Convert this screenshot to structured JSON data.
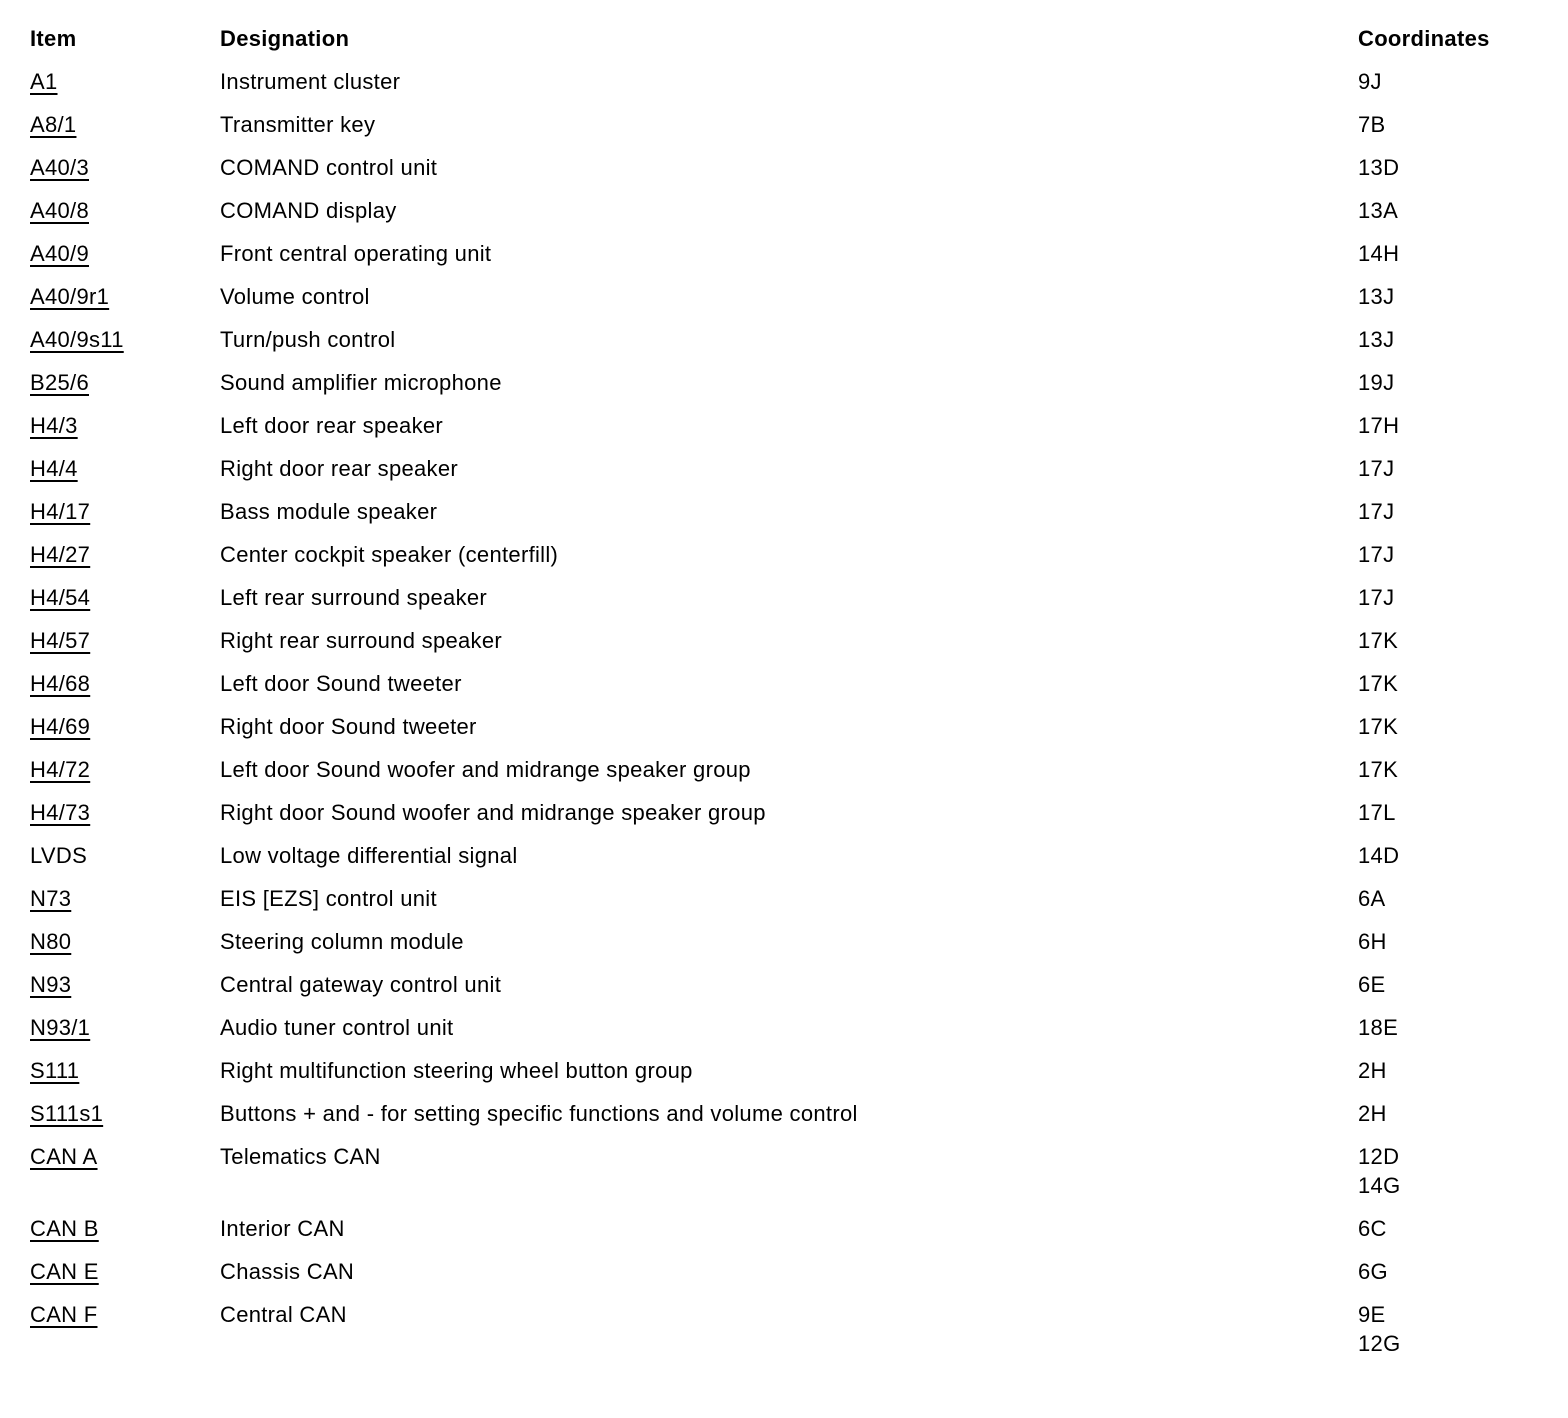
{
  "table": {
    "headers": {
      "item": "Item",
      "designation": "Designation",
      "coordinates": "Coordinates"
    },
    "rows": [
      {
        "item": "A1",
        "designation": "Instrument cluster",
        "coordinates": "9J",
        "link": true
      },
      {
        "item": "A8/1",
        "designation": "Transmitter key",
        "coordinates": "7B",
        "link": true
      },
      {
        "item": "A40/3",
        "designation": "COMAND control unit",
        "coordinates": "13D",
        "link": true
      },
      {
        "item": "A40/8",
        "designation": "COMAND display",
        "coordinates": "13A",
        "link": true
      },
      {
        "item": "A40/9",
        "designation": "Front central operating unit",
        "coordinates": "14H",
        "link": true
      },
      {
        "item": "A40/9r1",
        "designation": "Volume control",
        "coordinates": "13J",
        "link": true
      },
      {
        "item": "A40/9s11",
        "designation": "Turn/push control",
        "coordinates": "13J",
        "link": true
      },
      {
        "item": "B25/6",
        "designation": "Sound amplifier microphone",
        "coordinates": "19J",
        "link": true
      },
      {
        "item": "H4/3",
        "designation": "Left door rear speaker",
        "coordinates": "17H",
        "link": true
      },
      {
        "item": "H4/4",
        "designation": "Right door rear speaker",
        "coordinates": "17J",
        "link": true
      },
      {
        "item": "H4/17",
        "designation": "Bass module speaker",
        "coordinates": "17J",
        "link": true
      },
      {
        "item": "H4/27",
        "designation": "Center cockpit speaker (centerfill)",
        "coordinates": "17J",
        "link": true
      },
      {
        "item": "H4/54",
        "designation": "Left rear surround speaker",
        "coordinates": "17J",
        "link": true
      },
      {
        "item": "H4/57",
        "designation": "Right rear surround speaker",
        "coordinates": "17K",
        "link": true
      },
      {
        "item": "H4/68",
        "designation": "Left door Sound tweeter",
        "coordinates": "17K",
        "link": true
      },
      {
        "item": "H4/69",
        "designation": "Right door Sound tweeter",
        "coordinates": "17K",
        "link": true
      },
      {
        "item": "H4/72",
        "designation": "Left door Sound woofer and midrange speaker group",
        "coordinates": "17K",
        "link": true
      },
      {
        "item": "H4/73",
        "designation": "Right door Sound woofer and midrange speaker group",
        "coordinates": "17L",
        "link": true
      },
      {
        "item": "LVDS",
        "designation": "Low voltage differential signal",
        "coordinates": "14D",
        "link": false
      },
      {
        "item": "N73",
        "designation": "EIS [EZS] control unit",
        "coordinates": "6A",
        "link": true
      },
      {
        "item": "N80",
        "designation": "Steering column module",
        "coordinates": "6H",
        "link": true
      },
      {
        "item": "N93",
        "designation": "Central gateway control unit",
        "coordinates": "6E",
        "link": true
      },
      {
        "item": "N93/1",
        "designation": "Audio tuner control unit",
        "coordinates": "18E",
        "link": true
      },
      {
        "item": "S111",
        "designation": "Right multifunction steering wheel button group",
        "coordinates": "2H",
        "link": true
      },
      {
        "item": "S111s1",
        "designation": "Buttons + and - for setting specific functions and volume control",
        "coordinates": "2H",
        "link": true
      },
      {
        "item": "CAN A",
        "designation": "Telematics CAN",
        "coordinates": "12D\n14G",
        "link": true
      },
      {
        "item": "CAN B",
        "designation": "Interior CAN",
        "coordinates": "6C",
        "link": true
      },
      {
        "item": "CAN E",
        "designation": "Chassis CAN",
        "coordinates": "6G",
        "link": true
      },
      {
        "item": "CAN F",
        "designation": "Central CAN",
        "coordinates": "9E\n12G",
        "link": true
      }
    ]
  }
}
